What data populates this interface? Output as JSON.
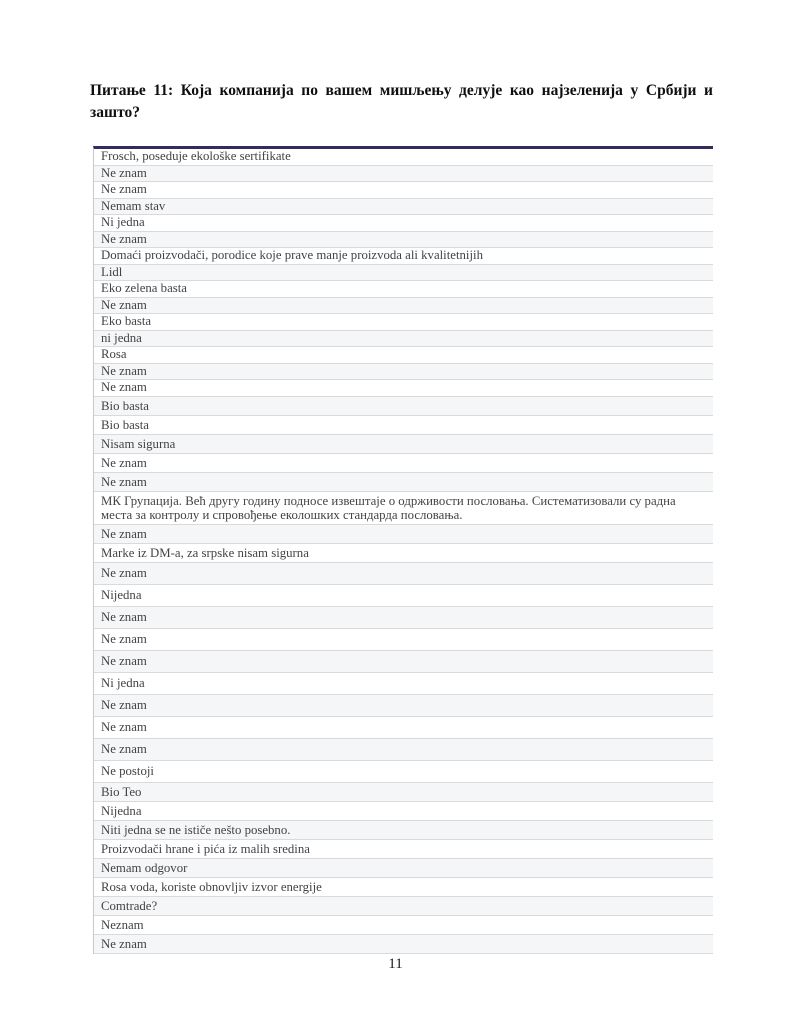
{
  "document": {
    "title": "Питање 11: Која компанија по вашем мишљењу делује као најзеленија у Србији и зашто?",
    "page_number": "11"
  },
  "table": {
    "responses": [
      "Frosch, poseduje ekološke sertifikate",
      "Ne znam",
      "Ne znam",
      "Nemam stav",
      "Ni jedna",
      "Ne znam",
      "Domaći proizvodači, porodice koje prave manje proizvoda ali kvalitetnijih",
      "Lidl",
      "Eko zelena basta",
      "Ne znam",
      "Eko basta",
      "ni jedna",
      "Rosa",
      "Ne znam",
      "Ne znam",
      "Bio basta",
      "Bio basta",
      "Nisam sigurna",
      "Ne znam",
      "Ne znam",
      "МК Групација. Већ другу годину подносе извештаје о одрживости пословања. Систематизовали су радна места за контролу и спровођење еколошких стандарда пословања.",
      "Ne znam",
      "Marke iz DM-a, za srpske nisam sigurna",
      "Ne znam",
      "Nijedna",
      "Ne znam",
      "Ne znam",
      "Ne znam",
      "Ni jedna",
      "Ne znam",
      "Ne znam",
      "Ne znam",
      "Ne postoji",
      "Bio Teo",
      "Nijedna",
      "Niti jedna se ne ističe nešto posebno.",
      "Proizvodači hrane i pića iz malih sredina",
      "Nemam odgovor",
      "Rosa voda, koriste obnovljiv izvor energije",
      "Comtrade?",
      "Neznam",
      "Ne znam"
    ]
  },
  "colors": {
    "table_top_border": "#332d5e",
    "row_separator": "#d8dade",
    "row_shaded": "#f5f6f8",
    "cell_text": "#434343",
    "title_text": "#0f0f0f"
  }
}
